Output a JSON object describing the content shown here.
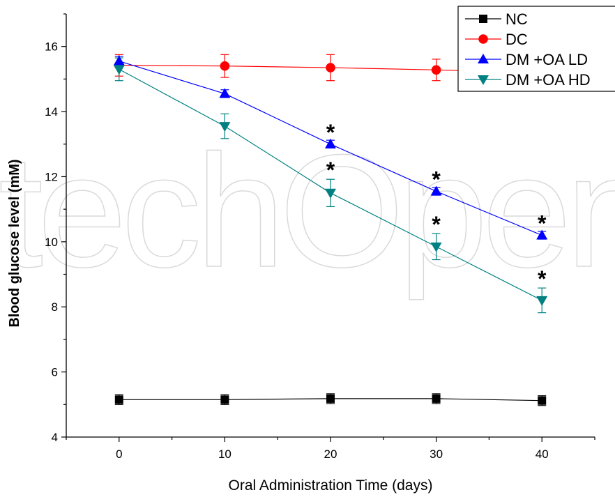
{
  "chart_data": {
    "type": "line",
    "xlabel": "Oral Administration Time (days)",
    "ylabel": "Blood glucose level (mM)",
    "x": [
      0,
      10,
      20,
      30,
      40
    ],
    "xlim": [
      -5,
      45
    ],
    "ylim": [
      4,
      17
    ],
    "xticks": [
      "0",
      "10",
      "20",
      "30",
      "40"
    ],
    "yticks": [
      "4",
      "6",
      "8",
      "10",
      "12",
      "14",
      "16"
    ],
    "grid": false,
    "legend_position": "top-right",
    "series": [
      {
        "name": "NC",
        "marker": "square",
        "color": "#000000",
        "values": [
          5.15,
          5.15,
          5.18,
          5.18,
          5.12
        ],
        "error": [
          0.15,
          0.15,
          0.15,
          0.15,
          0.15
        ],
        "significance": [
          "",
          "",
          "",
          "",
          ""
        ]
      },
      {
        "name": "DC",
        "marker": "circle",
        "color": "#ff0000",
        "values": [
          15.42,
          15.4,
          15.35,
          15.28,
          15.2
        ],
        "error": [
          0.33,
          0.35,
          0.4,
          0.33,
          0.3
        ],
        "significance": [
          "",
          "",
          "",
          "",
          ""
        ]
      },
      {
        "name": "DM +OA LD",
        "marker": "triangle-up",
        "color": "#0000ff",
        "values": [
          15.55,
          14.55,
          13.0,
          11.55,
          10.2
        ],
        "error": [
          0.15,
          0.12,
          0.12,
          0.12,
          0.12
        ],
        "significance": [
          "",
          "",
          "*",
          "*",
          "*"
        ]
      },
      {
        "name": "DM +OA HD",
        "marker": "triangle-down",
        "color": "#008080",
        "values": [
          15.3,
          13.55,
          11.5,
          9.85,
          8.2
        ],
        "error": [
          0.35,
          0.38,
          0.42,
          0.4,
          0.38
        ],
        "significance": [
          "",
          "",
          "*",
          "*",
          "*"
        ]
      }
    ]
  },
  "watermark_text": "techOpen"
}
